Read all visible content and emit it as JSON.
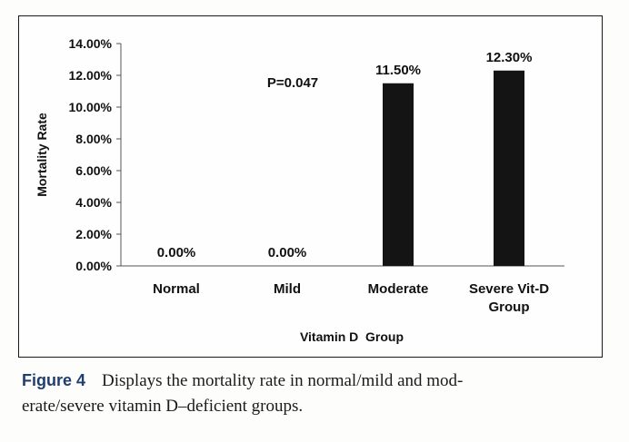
{
  "chart_data": {
    "type": "bar",
    "categories": [
      "Normal",
      "Mild",
      "Moderate",
      "Severe Vit-D Group"
    ],
    "category_lines": [
      [
        "Normal"
      ],
      [
        "Mild"
      ],
      [
        "Moderate"
      ],
      [
        "Severe Vit-D",
        "Group"
      ]
    ],
    "values": [
      0.0,
      0.0,
      11.5,
      12.3
    ],
    "data_labels": [
      "0.00%",
      "0.00%",
      "11.50%",
      "12.30%"
    ],
    "ylim": [
      0,
      14
    ],
    "yticks": [
      0,
      2,
      4,
      6,
      8,
      10,
      12,
      14
    ],
    "ytick_labels": [
      "0.00%",
      "2.00%",
      "4.00%",
      "6.00%",
      "8.00%",
      "10.00%",
      "12.00%",
      "14.00%"
    ],
    "xlabel": "Vitamin D  Group",
    "ylabel": "Mortality Rate",
    "annotation": "P=0.047",
    "bar_color": "#141414",
    "grid": false
  },
  "caption": {
    "label": "Figure 4",
    "line1": "Displays the mortality rate in normal/mild and mod-",
    "line2": "erate/severe vitamin D–deficient groups."
  }
}
